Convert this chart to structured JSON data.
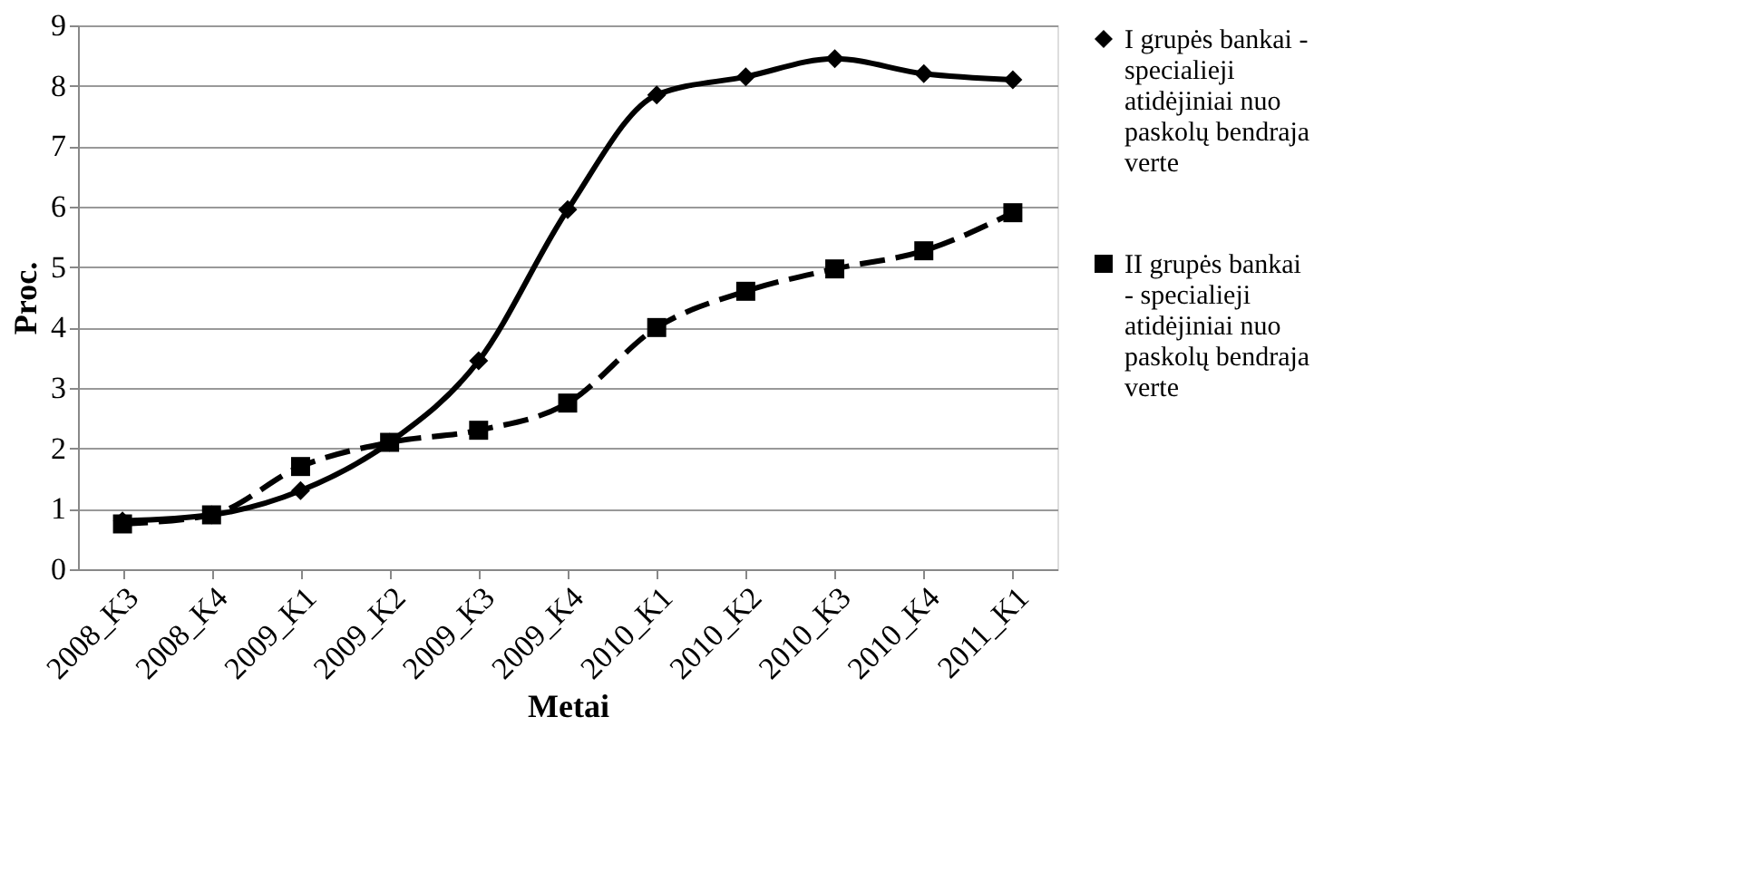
{
  "chart_data": {
    "type": "line",
    "xlabel": "Metai",
    "ylabel": "Proc.",
    "categories": [
      "2008_K3",
      "2008_K4",
      "2009_K1",
      "2009_K2",
      "2009_K3",
      "2009_K4",
      "2010_K1",
      "2010_K2",
      "2010_K3",
      "2010_K4",
      "2011_K1"
    ],
    "series": [
      {
        "name": "I grupės bankai - specialieji atidėjiniai nuo paskolų bendraja verte",
        "color": "#000000",
        "marker": "diamond",
        "line_style": "solid",
        "values": [
          0.8,
          0.9,
          1.3,
          2.1,
          3.45,
          5.95,
          7.85,
          8.15,
          8.45,
          8.2,
          8.1
        ]
      },
      {
        "name": "II grupės bankai - specialieji atidėjiniai nuo paskolų bendraja verte",
        "color": "#000000",
        "marker": "square",
        "line_style": "dashed",
        "values": [
          0.75,
          0.9,
          1.7,
          2.1,
          2.3,
          2.75,
          4.0,
          4.6,
          4.97,
          5.27,
          5.9
        ]
      }
    ],
    "ylim": [
      0,
      9
    ],
    "yticks": [
      0,
      1,
      2,
      3,
      4,
      5,
      6,
      7,
      8,
      9
    ],
    "grid": "y",
    "legend": "right"
  }
}
